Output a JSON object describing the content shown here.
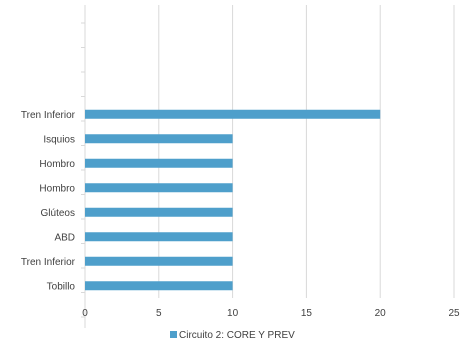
{
  "chart_data": {
    "type": "bar",
    "orientation": "horizontal",
    "categories": [
      "Tren Inferior",
      "Isquios",
      "Hombro",
      "Hombro",
      "Glúteos",
      "ABD",
      "Tren Inferior",
      "Tobillo"
    ],
    "series": [
      {
        "name": "Circuito 2: CORE Y PREV",
        "values": [
          20,
          10,
          10,
          10,
          10,
          10,
          10,
          10
        ],
        "color": "#4e9fcb"
      }
    ],
    "xlim": [
      0,
      25
    ],
    "xticks": [
      0,
      5,
      10,
      15,
      20,
      25
    ],
    "grid": true,
    "legend_position": "bottom",
    "title": "",
    "xlabel": "",
    "ylabel": ""
  }
}
